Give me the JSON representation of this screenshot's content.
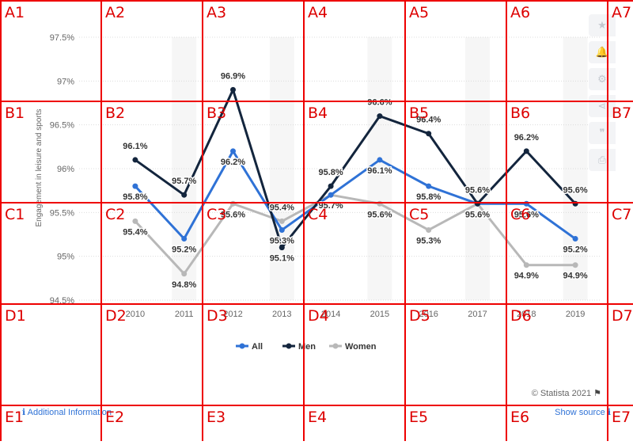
{
  "chart_data": {
    "type": "line",
    "title": "",
    "xlabel": "",
    "ylabel": "Engagement in leisure and sports",
    "ylim": [
      94.5,
      97.5
    ],
    "yticks": [
      "94.5%",
      "95%",
      "95.5%",
      "96%",
      "96.5%",
      "97%",
      "97.5%"
    ],
    "ytick_values": [
      94.5,
      95,
      95.5,
      96,
      96.5,
      97,
      97.5
    ],
    "categories": [
      "2010",
      "2011",
      "2012",
      "2013",
      "2014",
      "2015",
      "2016",
      "2017",
      "2018",
      "2019"
    ],
    "series": [
      {
        "name": "All",
        "color": "#2f72d6",
        "values": [
          95.8,
          95.2,
          96.2,
          95.3,
          95.7,
          96.1,
          95.8,
          95.6,
          95.6,
          95.2
        ],
        "labels": [
          "95.8%",
          "95.2%",
          "96.2%",
          "95.3%",
          "95.7%",
          "96.1%",
          "95.8%",
          "95.6%",
          "95.6%",
          "95.2%"
        ]
      },
      {
        "name": "Men",
        "color": "#13253d",
        "values": [
          96.1,
          95.7,
          96.9,
          95.1,
          95.8,
          96.6,
          96.4,
          95.6,
          96.2,
          95.6
        ],
        "labels": [
          "96.1%",
          "95.7%",
          "96.9%",
          "95.1%",
          "95.8%",
          "96.6%",
          "96.4%",
          "95.6%",
          "96.2%",
          "95.6%"
        ]
      },
      {
        "name": "Women",
        "color": "#b8b8b8",
        "values": [
          95.4,
          94.8,
          95.6,
          95.4,
          95.7,
          95.6,
          95.3,
          95.6,
          94.9,
          94.9
        ],
        "labels": [
          "95.4%",
          "94.8%",
          "95.6%",
          "95.4%",
          "95.7%",
          "95.6%",
          "95.3%",
          "95.6%",
          "94.9%",
          "94.9%"
        ]
      }
    ],
    "grid": true,
    "legend": "bottom"
  },
  "footer": {
    "copyright": "© Statista 2021",
    "info_link": "Additional Information",
    "source_link": "Show source"
  },
  "overlay": {
    "cols": [
      "A",
      "B",
      "C",
      "D",
      "E"
    ],
    "labels": [
      [
        "A1",
        "A2",
        "A3",
        "A4",
        "A5",
        "A6",
        "A7"
      ],
      [
        "B1",
        "B2",
        "B3",
        "B4",
        "B5",
        "B6",
        "B7"
      ],
      [
        "C1",
        "C2",
        "C3",
        "C4",
        "C5",
        "C6",
        "C7"
      ],
      [
        "D1",
        "D2",
        "D3",
        "D4",
        "D5",
        "D6",
        "D7"
      ],
      [
        "E1",
        "E2",
        "E3",
        "E4",
        "E5",
        "E6",
        "E7"
      ]
    ]
  }
}
